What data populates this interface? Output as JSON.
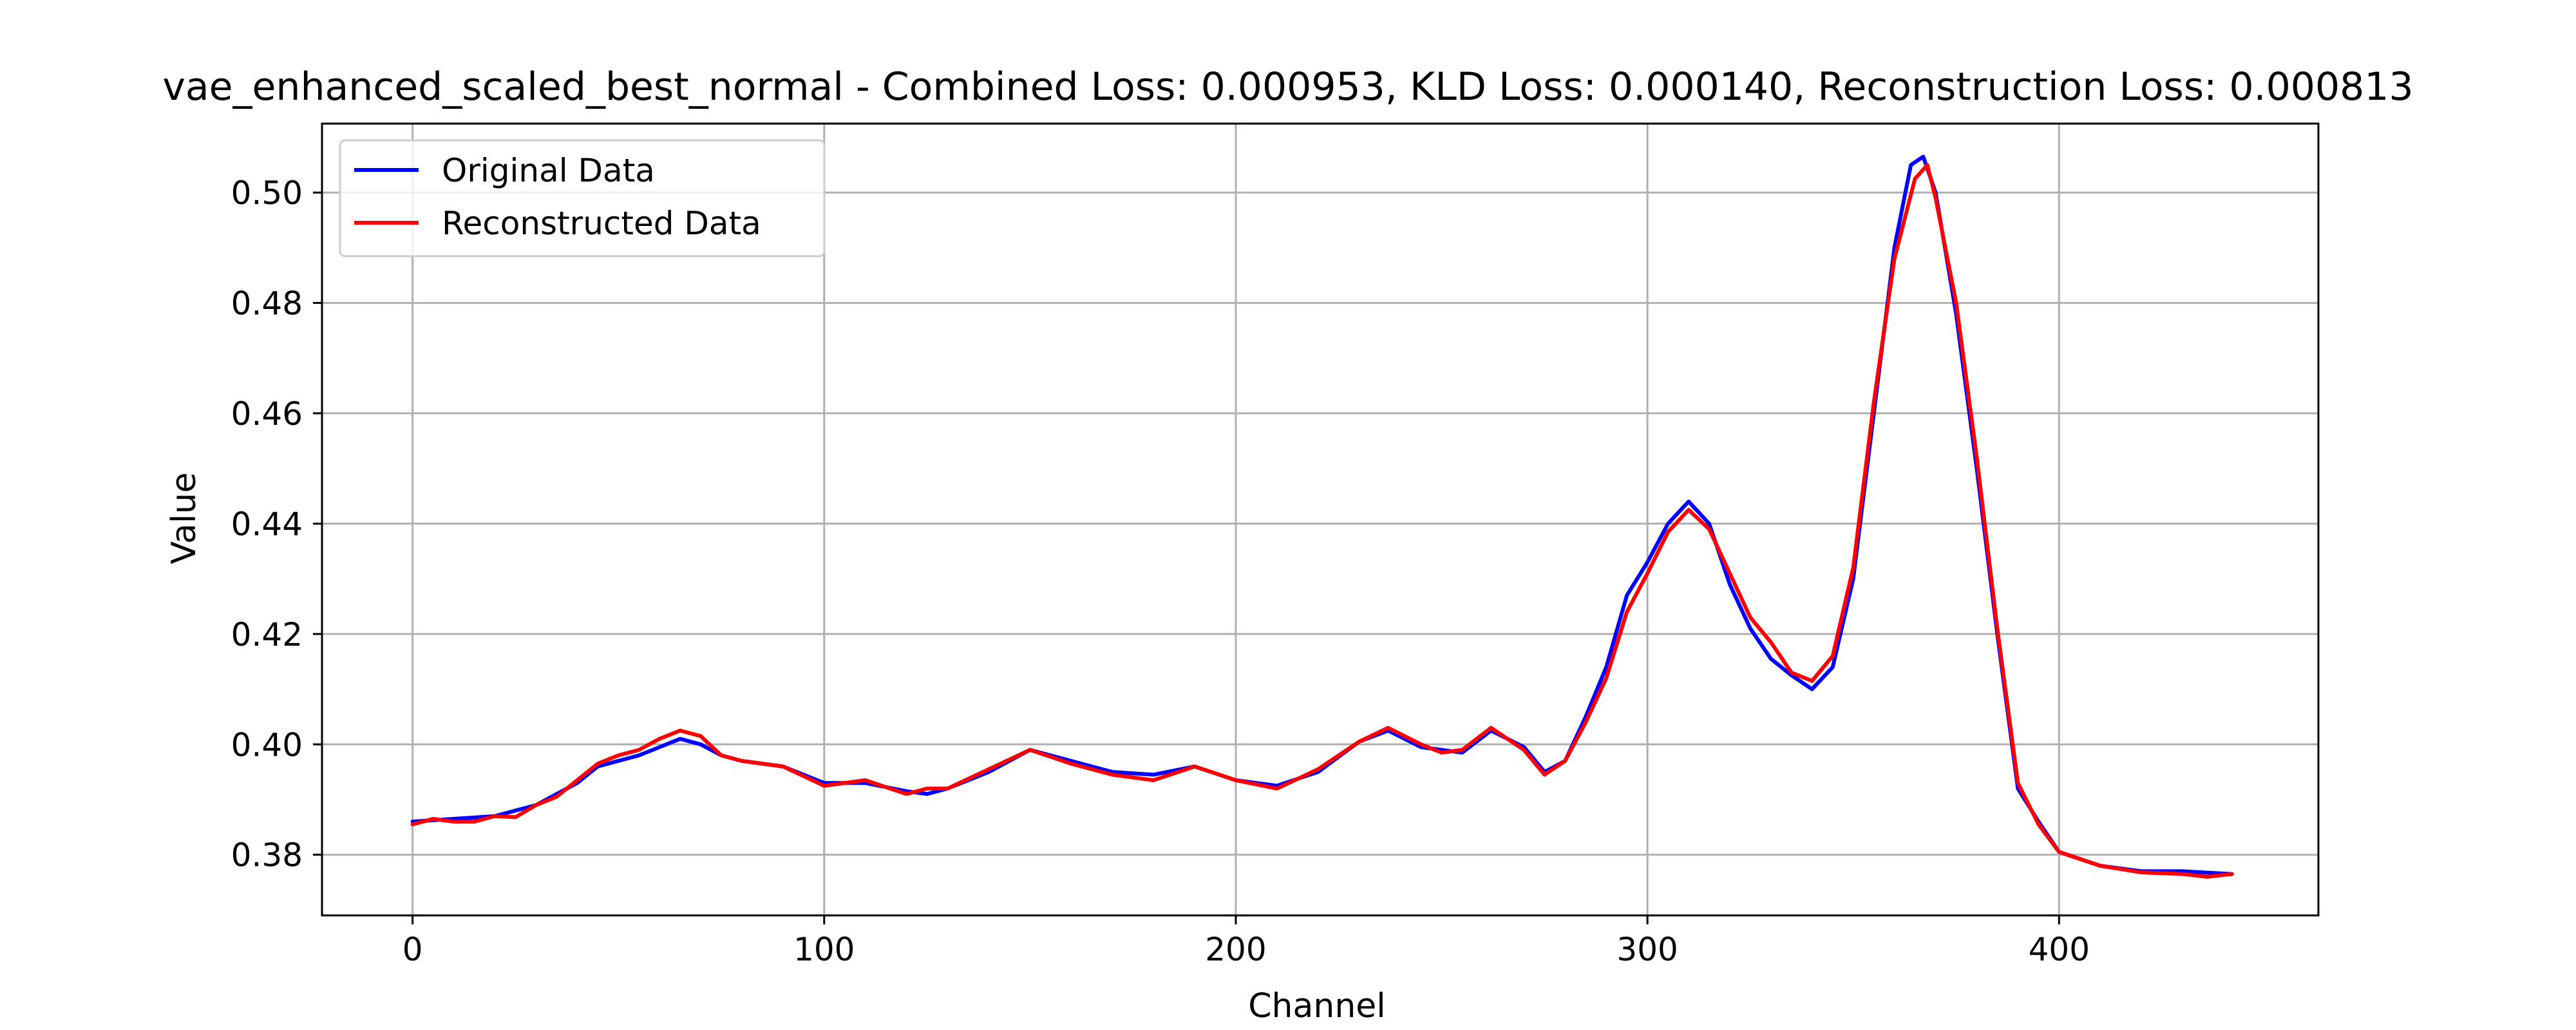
{
  "chart_data": {
    "type": "line",
    "title": "vae_enhanced_scaled_best_normal - Combined Loss: 0.000953, KLD Loss: 0.000140, Reconstruction Loss: 0.000813",
    "xlabel": "Channel",
    "ylabel": "Value",
    "xlim": [
      -22,
      463
    ],
    "ylim": [
      0.369,
      0.5125
    ],
    "xticks": [
      0,
      100,
      200,
      300,
      400
    ],
    "xtick_labels": [
      "0",
      "100",
      "200",
      "300",
      "400"
    ],
    "yticks": [
      0.38,
      0.4,
      0.42,
      0.44,
      0.46,
      0.48,
      0.5
    ],
    "ytick_labels": [
      "0.38",
      "0.40",
      "0.42",
      "0.44",
      "0.46",
      "0.48",
      "0.50"
    ],
    "grid": true,
    "legend": "top-left",
    "series": [
      {
        "name": "Original Data",
        "color": "#0000ff",
        "x": [
          0,
          10,
          20,
          30,
          40,
          45,
          50,
          55,
          60,
          65,
          70,
          75,
          80,
          90,
          100,
          110,
          120,
          125,
          130,
          140,
          150,
          160,
          170,
          180,
          190,
          200,
          210,
          220,
          230,
          237,
          245,
          255,
          262,
          270,
          275,
          280,
          285,
          290,
          295,
          300,
          305,
          310,
          315,
          320,
          325,
          330,
          335,
          340,
          345,
          350,
          355,
          360,
          364,
          367,
          370,
          375,
          380,
          385,
          390,
          395,
          400,
          410,
          420,
          430,
          442
        ],
        "y": [
          0.386,
          0.3865,
          0.387,
          0.389,
          0.393,
          0.396,
          0.397,
          0.398,
          0.3995,
          0.401,
          0.4,
          0.398,
          0.397,
          0.396,
          0.393,
          0.393,
          0.3915,
          0.391,
          0.392,
          0.395,
          0.399,
          0.397,
          0.395,
          0.3945,
          0.396,
          0.3935,
          0.3925,
          0.395,
          0.4005,
          0.4025,
          0.3995,
          0.3985,
          0.4025,
          0.3995,
          0.395,
          0.397,
          0.405,
          0.414,
          0.427,
          0.433,
          0.44,
          0.444,
          0.44,
          0.429,
          0.421,
          0.4155,
          0.4125,
          0.41,
          0.414,
          0.43,
          0.46,
          0.49,
          0.505,
          0.5065,
          0.5,
          0.478,
          0.45,
          0.42,
          0.392,
          0.386,
          0.3805,
          0.378,
          0.377,
          0.377,
          0.3765
        ]
      },
      {
        "name": "Reconstructed Data",
        "color": "#ff0000",
        "x": [
          0,
          5,
          10,
          15,
          20,
          25,
          30,
          35,
          40,
          45,
          50,
          55,
          60,
          65,
          70,
          75,
          80,
          90,
          100,
          110,
          120,
          125,
          130,
          140,
          150,
          160,
          170,
          180,
          190,
          200,
          210,
          220,
          230,
          237,
          245,
          250,
          255,
          262,
          270,
          275,
          280,
          285,
          290,
          295,
          300,
          305,
          310,
          315,
          320,
          325,
          330,
          335,
          340,
          345,
          350,
          355,
          360,
          365,
          368,
          370,
          375,
          380,
          385,
          390,
          395,
          400,
          410,
          420,
          430,
          436,
          442
        ],
        "y": [
          0.3855,
          0.3865,
          0.386,
          0.386,
          0.387,
          0.3868,
          0.389,
          0.3905,
          0.3935,
          0.3965,
          0.398,
          0.399,
          0.401,
          0.4025,
          0.4015,
          0.398,
          0.397,
          0.396,
          0.3925,
          0.3935,
          0.391,
          0.392,
          0.392,
          0.3955,
          0.399,
          0.3965,
          0.3945,
          0.3935,
          0.396,
          0.3935,
          0.392,
          0.3955,
          0.4005,
          0.403,
          0.4,
          0.3985,
          0.399,
          0.403,
          0.399,
          0.3945,
          0.397,
          0.404,
          0.412,
          0.424,
          0.431,
          0.4385,
          0.4425,
          0.439,
          0.431,
          0.423,
          0.4185,
          0.413,
          0.4115,
          0.416,
          0.432,
          0.462,
          0.488,
          0.5025,
          0.505,
          0.499,
          0.48,
          0.452,
          0.421,
          0.393,
          0.3855,
          0.3805,
          0.378,
          0.3768,
          0.3765,
          0.376,
          0.3765
        ]
      }
    ]
  }
}
